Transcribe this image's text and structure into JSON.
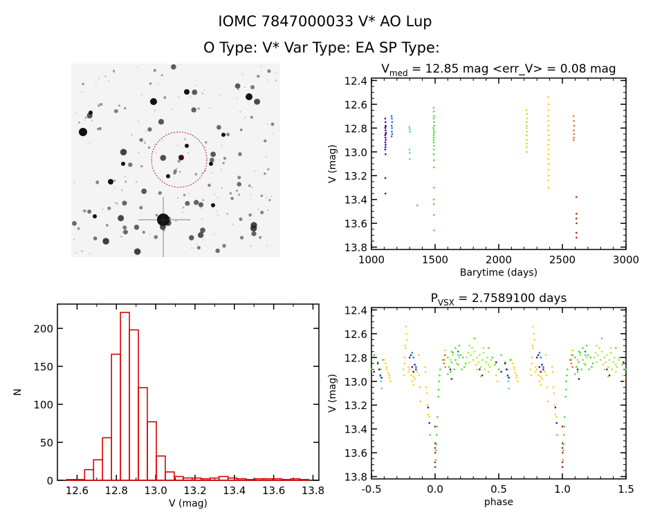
{
  "header": {
    "title": "IOMC 7847000033   V* AO Lup",
    "subtitle": "O Type: V*  Var Type: EA  SP Type:"
  },
  "chart_data": [
    {
      "id": "lightcurve",
      "type": "scatter",
      "title_main": "V",
      "title_sub": "med",
      "title_rest": " = 12.85 mag <err_V> = 0.08 mag",
      "xlabel": "Barytime (days)",
      "ylabel": "V (mag)",
      "xlim": [
        1000,
        3000
      ],
      "ylim": [
        13.82,
        12.38
      ],
      "y_inverted": true,
      "xticks": [
        1000,
        1500,
        2000,
        2500,
        3000
      ],
      "xtick_labels": [
        "1000",
        "1500",
        "2000",
        "2500",
        "3000"
      ],
      "yticks": [
        12.4,
        12.6,
        12.8,
        13.0,
        13.2,
        13.4,
        13.6,
        13.8
      ],
      "ytick_labels": [
        "12.4",
        "12.6",
        "12.8",
        "13.0",
        "13.2",
        "13.4",
        "13.6",
        "13.8"
      ],
      "series": [
        {
          "color": "#46108a",
          "x": [
            1108,
            1110,
            1112,
            1109,
            1111,
            1113,
            1108,
            1110,
            1112,
            1109,
            1111,
            1110,
            1108,
            1112,
            1110,
            1111,
            1109,
            1110
          ],
          "y": [
            12.72,
            12.75,
            12.78,
            12.8,
            12.82,
            12.84,
            12.86,
            12.88,
            12.9,
            12.92,
            12.94,
            12.96,
            12.98,
            12.85,
            12.79,
            13.02,
            13.22,
            13.35
          ]
        },
        {
          "color": "#1f6fd8",
          "x": [
            1158,
            1160,
            1162,
            1159,
            1161,
            1160,
            1163,
            1158
          ],
          "y": [
            12.7,
            12.72,
            12.75,
            12.78,
            12.8,
            12.83,
            12.85,
            12.87
          ]
        },
        {
          "color": "#3ed6d6",
          "x": [
            1298,
            1300,
            1302,
            1299,
            1301,
            1300
          ],
          "y": [
            12.79,
            12.81,
            12.83,
            12.98,
            13.01,
            13.06
          ]
        },
        {
          "color": "#30e050",
          "x": [
            1360
          ],
          "y": [
            13.45
          ]
        },
        {
          "color": "#48e030",
          "x": [
            1488,
            1490,
            1492,
            1489,
            1491,
            1493,
            1487,
            1490,
            1492,
            1489,
            1491,
            1488,
            1490,
            1492,
            1490,
            1489,
            1491,
            1490,
            1491,
            1489,
            1490,
            1490,
            1491
          ],
          "y": [
            12.63,
            12.66,
            12.7,
            12.72,
            12.75,
            12.78,
            12.8,
            12.82,
            12.84,
            12.86,
            12.88,
            12.9,
            12.92,
            12.95,
            12.98,
            13.02,
            13.07,
            13.13,
            13.3,
            13.4,
            13.44,
            13.53,
            13.66
          ]
        },
        {
          "color": "#a8ee30",
          "x": [
            2218,
            2220,
            2222,
            2219,
            2221,
            2220,
            2222,
            2218,
            2220,
            2221,
            2219,
            2220
          ],
          "y": [
            12.65,
            12.68,
            12.72,
            12.75,
            12.78,
            12.8,
            12.83,
            12.86,
            12.9,
            12.93,
            12.96,
            13.0
          ]
        },
        {
          "color": "#ffd020",
          "x": [
            2388,
            2390,
            2392,
            2389,
            2391,
            2390,
            2388,
            2392,
            2390,
            2389,
            2391,
            2390,
            2388,
            2392,
            2390,
            2391,
            2389,
            2390
          ],
          "y": [
            12.54,
            12.6,
            12.65,
            12.7,
            12.74,
            12.78,
            12.82,
            12.86,
            12.9,
            12.94,
            12.98,
            13.02,
            13.06,
            13.1,
            13.15,
            13.2,
            13.24,
            13.3
          ]
        },
        {
          "color": "#f07028",
          "x": [
            2588,
            2590,
            2592,
            2589,
            2591,
            2590,
            2589
          ],
          "y": [
            12.7,
            12.74,
            12.78,
            12.82,
            12.85,
            12.88,
            12.9
          ]
        },
        {
          "color": "#c02020",
          "x": [
            2610,
            2611,
            2610,
            2611,
            2610,
            2611
          ],
          "y": [
            13.38,
            13.52,
            13.56,
            13.6,
            13.68,
            13.72
          ]
        }
      ]
    },
    {
      "id": "histogram",
      "type": "bar",
      "xlabel": "V (mag)",
      "ylabel": "N",
      "xlim": [
        12.5,
        13.83
      ],
      "ylim": [
        0,
        232
      ],
      "xticks": [
        12.6,
        12.8,
        13.0,
        13.2,
        13.4,
        13.6,
        13.8
      ],
      "xtick_labels": [
        "12.6",
        "12.8",
        "13.0",
        "13.2",
        "13.4",
        "13.6",
        "13.8"
      ],
      "yticks": [
        0,
        50,
        100,
        150,
        200
      ],
      "ytick_labels": [
        "0",
        "50",
        "100",
        "150",
        "200"
      ],
      "bar_color": "#dd0000",
      "bin_start": 12.547,
      "bin_width": 0.0456,
      "values": [
        1,
        1,
        14,
        27,
        56,
        166,
        221,
        198,
        122,
        77,
        32,
        11,
        5,
        3,
        3,
        2,
        3,
        5,
        3,
        2,
        1,
        2,
        2,
        2,
        1,
        2,
        1
      ]
    },
    {
      "id": "phased",
      "type": "scatter",
      "title_main": "P",
      "title_sub": "VSX",
      "title_rest": " = 2.7589100 days",
      "xlabel": "phase",
      "ylabel": "V (mag)",
      "xlim": [
        -0.5,
        1.5
      ],
      "ylim": [
        13.82,
        12.38
      ],
      "y_inverted": true,
      "period_days": 2.75891,
      "xticks": [
        -0.5,
        0.0,
        0.5,
        1.0,
        1.5
      ],
      "xtick_labels": [
        "-0.5",
        "0.0",
        "0.5",
        "1.0",
        "1.5"
      ],
      "yticks": [
        12.4,
        12.6,
        12.8,
        13.0,
        13.2,
        13.4,
        13.6,
        13.8
      ],
      "ytick_labels": [
        "12.4",
        "12.6",
        "12.8",
        "13.0",
        "13.2",
        "13.4",
        "13.6",
        "13.8"
      ],
      "series": [
        {
          "color": "#ffd020",
          "phase": [
            0.75,
            0.76,
            0.765,
            0.77,
            0.775,
            0.76,
            0.78,
            0.755,
            0.77,
            0.79,
            0.8,
            0.81,
            0.82,
            0.83,
            0.84,
            0.85,
            0.86,
            0.87,
            0.875,
            0.88,
            0.885,
            0.92,
            0.925,
            0.93,
            0.935,
            0.94,
            0.945,
            0.6,
            0.61,
            0.62,
            0.63,
            0.64,
            0.65,
            0.62,
            0.64,
            0.48,
            0.49,
            0.955,
            0.79,
            0.83
          ],
          "v": [
            12.9,
            12.85,
            12.7,
            12.54,
            12.6,
            12.8,
            12.65,
            12.95,
            12.72,
            12.88,
            12.9,
            12.95,
            13.0,
            13.03,
            12.98,
            12.88,
            12.92,
            12.78,
            12.95,
            13.05,
            13.17,
            12.88,
            12.92,
            13.05,
            13.1,
            13.2,
            13.28,
            12.82,
            12.85,
            12.9,
            12.93,
            12.97,
            13.0,
            12.88,
            12.95,
            12.95,
            13.0,
            13.3,
            12.92,
            12.96
          ]
        },
        {
          "color": "#48e030",
          "phase": [
            0.005,
            0.007,
            0.01,
            0.012,
            0.015,
            0.018,
            0.025,
            0.028,
            0.03,
            0.035,
            0.04,
            0.06,
            0.08,
            0.1,
            0.11,
            0.12,
            0.13,
            0.14,
            0.15,
            0.16,
            0.18,
            0.2,
            0.21,
            0.22,
            0.24,
            0.31,
            0.45,
            0.47,
            0.5,
            0.52,
            0.55,
            0.57,
            0.59,
            0.42,
            0.1,
            0.13,
            0.16,
            0.19,
            0.23,
            0.96
          ],
          "v": [
            13.66,
            13.58,
            13.53,
            13.45,
            13.38,
            13.3,
            13.13,
            13.07,
            13.0,
            12.95,
            12.9,
            12.82,
            12.78,
            12.8,
            12.88,
            12.92,
            12.84,
            12.76,
            12.9,
            12.82,
            12.86,
            12.78,
            12.9,
            12.8,
            12.85,
            12.64,
            12.8,
            12.86,
            12.9,
            12.78,
            12.84,
            12.9,
            12.82,
            12.72,
            12.94,
            12.75,
            12.72,
            12.7,
            12.88,
            13.45
          ]
        },
        {
          "color": "#a8ee30",
          "phase": [
            0.25,
            0.26,
            0.27,
            0.28,
            0.29,
            0.3,
            0.31,
            0.32,
            0.33,
            0.34,
            0.35,
            0.36,
            0.37,
            0.38,
            0.39,
            0.4,
            0.41,
            0.42,
            0.43,
            0.44,
            0.12,
            0.14,
            0.17,
            0.19,
            0.08,
            0.27,
            0.33,
            0.38,
            0.42,
            0.36
          ],
          "v": [
            12.8,
            12.76,
            12.84,
            12.78,
            12.72,
            12.82,
            12.75,
            12.86,
            12.8,
            12.84,
            12.78,
            12.88,
            12.82,
            12.76,
            12.9,
            12.84,
            12.8,
            12.86,
            12.88,
            12.82,
            12.82,
            12.78,
            12.85,
            12.8,
            12.74,
            12.7,
            12.9,
            12.72,
            12.92,
            12.96
          ]
        },
        {
          "color": "#46108a",
          "phase": [
            0.55,
            0.56,
            0.57,
            0.58,
            0.8,
            0.81,
            0.82,
            0.83,
            0.84,
            0.85,
            0.35,
            0.37,
            0.945,
            0.955,
            0.12,
            0.13,
            0.48,
            0.52
          ],
          "v": [
            12.85,
            12.9,
            12.95,
            12.97,
            12.8,
            12.78,
            12.88,
            12.92,
            12.86,
            12.9,
            12.9,
            12.95,
            13.22,
            13.35,
            12.9,
            12.98,
            12.84,
            12.92
          ]
        },
        {
          "color": "#3ed6d6",
          "phase": [
            0.58,
            0.575,
            0.18,
            0.57
          ],
          "v": [
            13.06,
            13.0,
            12.78,
            12.96
          ]
        },
        {
          "color": "#1f6fd8",
          "phase": [
            0.82,
            0.85,
            0.18,
            0.83
          ],
          "v": [
            12.76,
            12.88,
            12.75,
            12.8
          ]
        },
        {
          "color": "#f07028",
          "phase": [
            0.07,
            0.08,
            0.075,
            0.07
          ],
          "v": [
            12.82,
            12.88,
            12.78,
            12.85
          ]
        },
        {
          "color": "#c02020",
          "phase": [
            0.0,
            0.001,
            0.0,
            0.002,
            0.0,
            0.001
          ],
          "v": [
            13.38,
            13.52,
            13.56,
            13.6,
            13.68,
            13.72
          ]
        }
      ]
    }
  ],
  "finder_image": {
    "circle_color": "#b01818"
  }
}
